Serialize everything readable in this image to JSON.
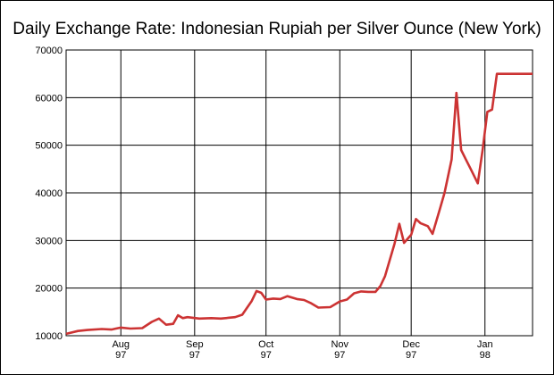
{
  "chart_data": {
    "type": "line",
    "title": "Daily Exchange Rate: Indonesian Rupiah per Silver Ounce (New York)",
    "xlabel": "",
    "ylabel": "",
    "ylim": [
      10000,
      70000
    ],
    "xlim": [
      "1997-07-09",
      "1998-01-21"
    ],
    "y_ticks": [
      10000,
      20000,
      30000,
      40000,
      50000,
      60000,
      70000
    ],
    "y_tick_labels": [
      "10000",
      "20000",
      "30000",
      "40000",
      "50000",
      "60000",
      "70000"
    ],
    "x_ticks": [
      {
        "date": "1997-08-01",
        "month": "Aug",
        "year": "97"
      },
      {
        "date": "1997-09-01",
        "month": "Sep",
        "year": "97"
      },
      {
        "date": "1997-10-01",
        "month": "Oct",
        "year": "97"
      },
      {
        "date": "1997-11-01",
        "month": "Nov",
        "year": "97"
      },
      {
        "date": "1997-12-01",
        "month": "Dec",
        "year": "97"
      },
      {
        "date": "1998-01-01",
        "month": "Jan",
        "year": "98"
      }
    ],
    "grid": true,
    "line_color": "#cc3333",
    "series": [
      {
        "x": [
          "1997-07-09",
          "1997-07-14",
          "1997-07-18",
          "1997-07-24",
          "1997-07-28",
          "1997-08-01",
          "1997-08-05",
          "1997-08-10",
          "1997-08-14",
          "1997-08-17",
          "1997-08-20",
          "1997-08-23",
          "1997-08-25",
          "1997-08-27",
          "1997-08-29",
          "1997-09-03",
          "1997-09-08",
          "1997-09-12",
          "1997-09-18",
          "1997-09-21",
          "1997-09-25",
          "1997-09-27",
          "1997-09-29",
          "1997-10-01",
          "1997-10-04",
          "1997-10-07",
          "1997-10-10",
          "1997-10-14",
          "1997-10-17",
          "1997-10-20",
          "1997-10-23",
          "1997-10-28",
          "1997-11-01",
          "1997-11-04",
          "1997-11-07",
          "1997-11-10",
          "1997-11-13",
          "1997-11-16",
          "1997-11-18",
          "1997-11-20",
          "1997-11-24",
          "1997-11-26",
          "1997-11-28",
          "1997-12-01",
          "1997-12-03",
          "1997-12-05",
          "1997-12-08",
          "1997-12-10",
          "1997-12-13",
          "1997-12-15",
          "1997-12-18",
          "1997-12-20",
          "1997-12-22",
          "1997-12-24",
          "1997-12-26",
          "1997-12-29",
          "1997-12-31",
          "1998-01-02",
          "1998-01-04",
          "1998-01-06",
          "1998-01-07",
          "1998-01-08",
          "1998-01-10",
          "1998-01-12",
          "1998-01-13",
          "1998-01-14",
          "1998-01-16",
          "1998-01-17",
          "1998-01-18",
          "1998-01-19",
          "1998-01-20",
          "1998-01-21"
        ],
        "y": [
          10400,
          11000,
          11200,
          11400,
          11300,
          11700,
          11500,
          11600,
          12900,
          13600,
          12300,
          12500,
          14300,
          13700,
          13900,
          13600,
          13700,
          13600,
          13900,
          14400,
          17300,
          19400,
          19000,
          17600,
          17800,
          17700,
          18300,
          17700,
          17500,
          16800,
          15900,
          16000,
          17200,
          17600,
          18900,
          19300,
          19200,
          19200,
          20400,
          22500,
          29300,
          33500,
          29500,
          31200,
          34500,
          33600,
          33000,
          31400,
          36500,
          40000,
          47000,
          61000,
          49000,
          47000,
          45000,
          42000,
          49000,
          57000,
          57500,
          65000,
          65000,
          65000,
          65000,
          65000,
          65000,
          65000,
          65000,
          65000,
          65000,
          65000,
          65000,
          65000
        ]
      }
    ]
  }
}
